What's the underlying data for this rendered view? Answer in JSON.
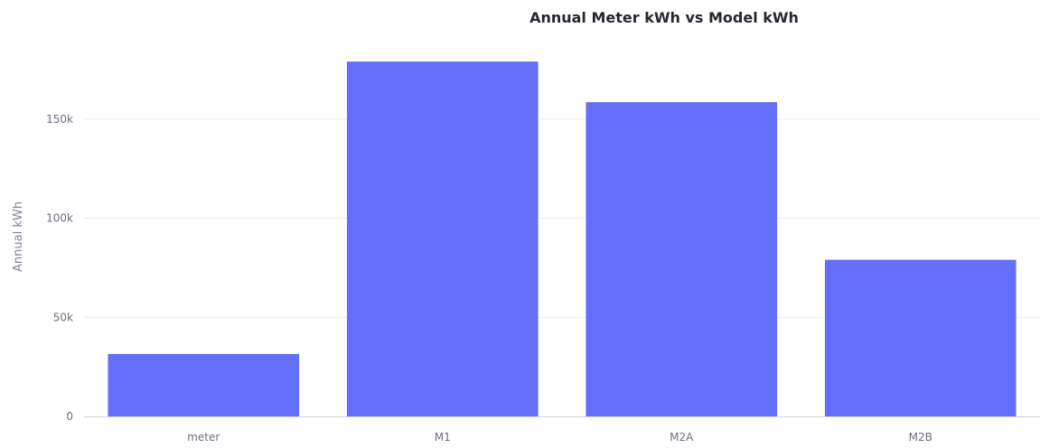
{
  "chart_data": {
    "type": "bar",
    "title": "Annual Meter kWh vs Model kWh",
    "xlabel": "",
    "ylabel": "Annual kWh",
    "categories": [
      "meter",
      "M1",
      "M2A",
      "M2B"
    ],
    "values": [
      31500,
      179000,
      158500,
      79000
    ],
    "ylim": [
      0,
      185000
    ],
    "yticks": [
      0,
      50000,
      100000,
      150000
    ],
    "ytick_labels": [
      "0",
      "50k",
      "100k",
      "150k"
    ],
    "grid": true,
    "legend": "none",
    "bar_color": "#636efa"
  }
}
